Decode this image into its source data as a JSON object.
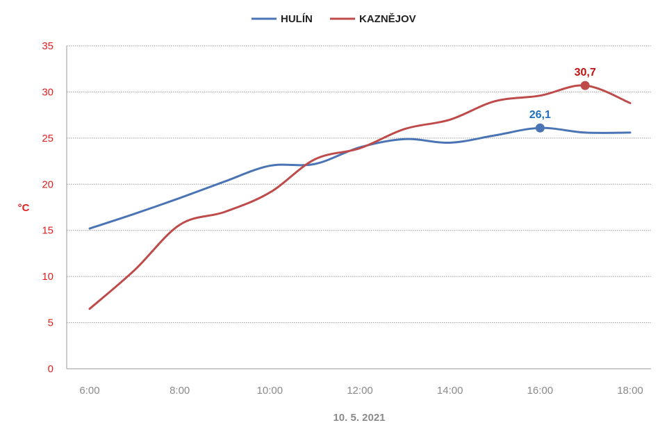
{
  "chart_data": {
    "type": "line",
    "xlabel": "10. 5. 2021",
    "ylabel": "°C",
    "ylim": [
      0,
      35
    ],
    "yticks": [
      "0",
      "5",
      "10",
      "15",
      "20",
      "25",
      "30",
      "35"
    ],
    "x": [
      "6:00",
      "7:00",
      "8:00",
      "9:00",
      "10:00",
      "11:00",
      "12:00",
      "13:00",
      "14:00",
      "15:00",
      "16:00",
      "17:00",
      "18:00"
    ],
    "xtick_labels": [
      "6:00",
      "8:00",
      "10:00",
      "12:00",
      "14:00",
      "16:00",
      "18:00"
    ],
    "grid": "horizontal",
    "legend_position": "top",
    "series": [
      {
        "name": "HULÍN",
        "color": "#4a74b4",
        "values": [
          15.2,
          16.8,
          18.5,
          20.3,
          22.0,
          22.2,
          24.0,
          24.9,
          24.5,
          25.3,
          26.1,
          25.6,
          25.6
        ],
        "highlight": {
          "index": 10,
          "label": "26,1",
          "label_color": "#1f6fbf"
        }
      },
      {
        "name": "KAZNĚJOV",
        "color": "#bf4a4a",
        "values": [
          6.5,
          10.7,
          15.6,
          17.0,
          19.1,
          22.7,
          23.9,
          26.0,
          27.0,
          29.0,
          29.6,
          30.7,
          28.8
        ],
        "highlight": {
          "index": 11,
          "label": "30,7",
          "label_color": "#c01010"
        }
      }
    ]
  }
}
